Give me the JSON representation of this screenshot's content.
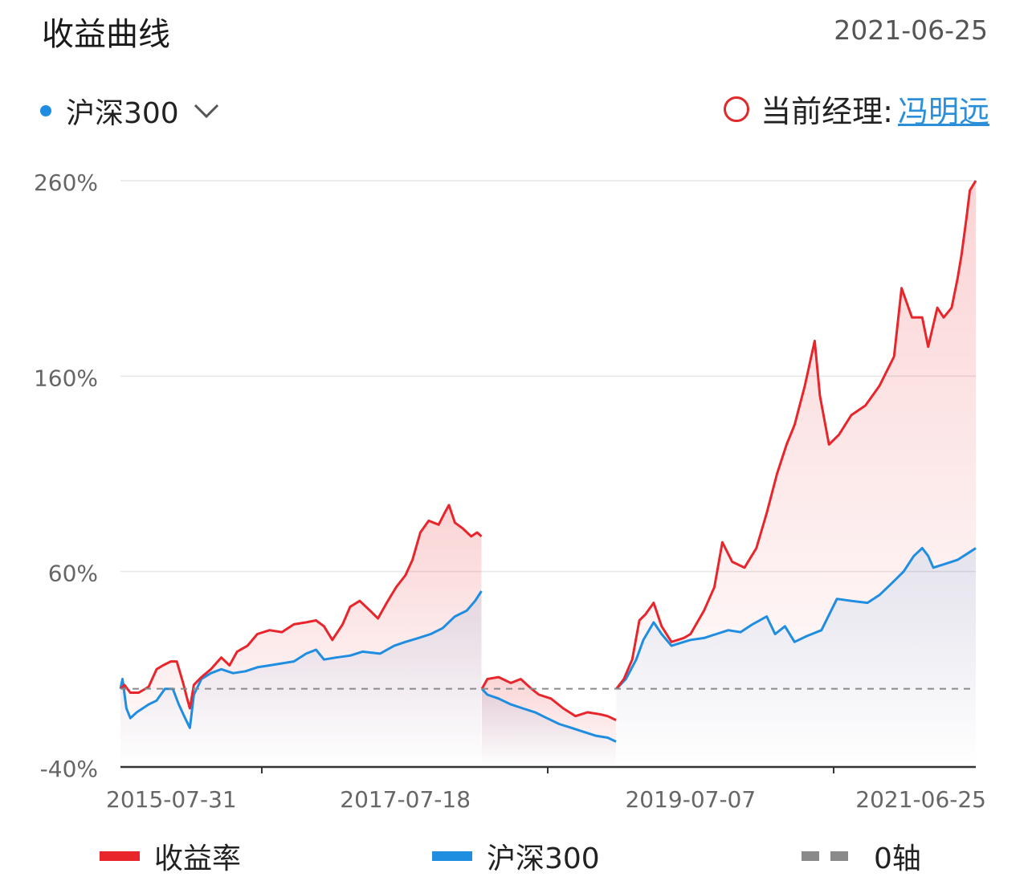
{
  "header": {
    "title": "收益曲线",
    "date": "2021-06-25"
  },
  "selector": {
    "label": "沪深300",
    "dot_color": "#1f8de0",
    "icon": "chevron-down-icon"
  },
  "manager": {
    "label": "当前经理:",
    "name": "冯明远",
    "marker_color": "#e0292b"
  },
  "chart_data": {
    "type": "line",
    "title": "",
    "xlabel": "",
    "ylabel": "",
    "ylim": [
      -40,
      260
    ],
    "y_ticks": [
      "260%",
      "160%",
      "60%",
      "-40%"
    ],
    "y_tick_values": [
      260,
      160,
      60,
      -40
    ],
    "x_ticks": [
      "2015-07-31",
      "2017-07-18",
      "2019-07-07",
      "2021-06-25"
    ],
    "x_range": [
      "2015-07-31",
      "2021-06-25"
    ],
    "zero_axis_value": 0,
    "grid": true,
    "legend_position": "bottom",
    "series": [
      {
        "name": "收益率",
        "color": "#e8252b",
        "segments": [
          [
            [
              "2015-07-31",
              0
            ],
            [
              "2015-08-10",
              2
            ],
            [
              "2015-08-25",
              -2
            ],
            [
              "2015-09-15",
              -2
            ],
            [
              "2015-10-10",
              1
            ],
            [
              "2015-10-30",
              10
            ],
            [
              "2015-11-15",
              12
            ],
            [
              "2015-12-05",
              14
            ],
            [
              "2015-12-20",
              14
            ],
            [
              "2016-01-05",
              3
            ],
            [
              "2016-01-15",
              -5
            ],
            [
              "2016-01-22",
              -10
            ],
            [
              "2016-02-01",
              2
            ],
            [
              "2016-02-20",
              6
            ],
            [
              "2016-03-15",
              10
            ],
            [
              "2016-04-10",
              16
            ],
            [
              "2016-05-01",
              12
            ],
            [
              "2016-05-20",
              19
            ],
            [
              "2016-06-15",
              22
            ],
            [
              "2016-07-10",
              28
            ],
            [
              "2016-08-10",
              30
            ],
            [
              "2016-09-10",
              29
            ],
            [
              "2016-10-10",
              33
            ],
            [
              "2016-11-10",
              34
            ],
            [
              "2016-12-05",
              35
            ],
            [
              "2016-12-25",
              32
            ],
            [
              "2017-01-15",
              25
            ],
            [
              "2017-02-10",
              33
            ],
            [
              "2017-03-01",
              42
            ],
            [
              "2017-03-25",
              45
            ],
            [
              "2017-04-20",
              40
            ],
            [
              "2017-05-10",
              36
            ],
            [
              "2017-06-01",
              44
            ],
            [
              "2017-06-25",
              52
            ],
            [
              "2017-07-18",
              58
            ],
            [
              "2017-08-05",
              66
            ],
            [
              "2017-08-25",
              80
            ],
            [
              "2017-09-15",
              86
            ],
            [
              "2017-10-10",
              84
            ],
            [
              "2017-10-25",
              90
            ],
            [
              "2017-11-05",
              94
            ],
            [
              "2017-11-20",
              85
            ],
            [
              "2017-12-10",
              82
            ],
            [
              "2017-12-31",
              78
            ],
            [
              "2018-01-15",
              80
            ],
            [
              "2018-01-26",
              78
            ]
          ],
          [
            [
              "2018-01-27",
              0
            ],
            [
              "2018-02-10",
              5
            ],
            [
              "2018-03-10",
              6
            ],
            [
              "2018-04-10",
              3
            ],
            [
              "2018-05-05",
              5
            ],
            [
              "2018-06-01",
              0
            ],
            [
              "2018-06-20",
              -3
            ],
            [
              "2018-07-20",
              -5
            ],
            [
              "2018-08-20",
              -10
            ],
            [
              "2018-09-20",
              -14
            ],
            [
              "2018-10-20",
              -12
            ],
            [
              "2018-11-20",
              -13
            ],
            [
              "2018-12-10",
              -14
            ],
            [
              "2018-12-31",
              -16
            ]
          ],
          [
            [
              "2019-01-01",
              0
            ],
            [
              "2019-01-20",
              5
            ],
            [
              "2019-02-10",
              15
            ],
            [
              "2019-02-28",
              35
            ],
            [
              "2019-03-15",
              38
            ],
            [
              "2019-04-05",
              44
            ],
            [
              "2019-04-25",
              32
            ],
            [
              "2019-05-20",
              24
            ],
            [
              "2019-06-20",
              26
            ],
            [
              "2019-07-07",
              28
            ],
            [
              "2019-08-10",
              40
            ],
            [
              "2019-09-05",
              52
            ],
            [
              "2019-09-25",
              75
            ],
            [
              "2019-10-20",
              65
            ],
            [
              "2019-11-20",
              62
            ],
            [
              "2019-12-20",
              72
            ],
            [
              "2020-01-15",
              90
            ],
            [
              "2020-02-10",
              110
            ],
            [
              "2020-03-05",
              125
            ],
            [
              "2020-03-25",
              135
            ],
            [
              "2020-04-20",
              155
            ],
            [
              "2020-05-15",
              178
            ],
            [
              "2020-05-28",
              150
            ],
            [
              "2020-06-20",
              125
            ],
            [
              "2020-07-15",
              130
            ],
            [
              "2020-08-15",
              140
            ],
            [
              "2020-09-20",
              145
            ],
            [
              "2020-10-25",
              155
            ],
            [
              "2020-12-01",
              170
            ],
            [
              "2020-12-20",
              205
            ],
            [
              "2021-01-15",
              190
            ],
            [
              "2021-02-10",
              190
            ],
            [
              "2021-02-25",
              175
            ],
            [
              "2021-03-20",
              195
            ],
            [
              "2021-04-05",
              190
            ],
            [
              "2021-04-25",
              195
            ],
            [
              "2021-05-10",
              210
            ],
            [
              "2021-05-20",
              222
            ],
            [
              "2021-06-01",
              240
            ],
            [
              "2021-06-10",
              255
            ],
            [
              "2021-06-25",
              260
            ]
          ]
        ]
      },
      {
        "name": "沪深300",
        "color": "#1f8de0",
        "segments": [
          [
            [
              "2015-07-31",
              0
            ],
            [
              "2015-08-05",
              5
            ],
            [
              "2015-08-15",
              -10
            ],
            [
              "2015-08-25",
              -15
            ],
            [
              "2015-09-10",
              -12
            ],
            [
              "2015-10-10",
              -8
            ],
            [
              "2015-10-30",
              -6
            ],
            [
              "2015-11-20",
              0
            ],
            [
              "2015-12-10",
              0
            ],
            [
              "2015-12-25",
              -8
            ],
            [
              "2016-01-10",
              -15
            ],
            [
              "2016-01-22",
              -20
            ],
            [
              "2016-02-01",
              -3
            ],
            [
              "2016-02-20",
              5
            ],
            [
              "2016-03-15",
              8
            ],
            [
              "2016-04-10",
              10
            ],
            [
              "2016-05-10",
              8
            ],
            [
              "2016-06-10",
              9
            ],
            [
              "2016-07-10",
              11
            ],
            [
              "2016-08-10",
              12
            ],
            [
              "2016-09-10",
              13
            ],
            [
              "2016-10-10",
              14
            ],
            [
              "2016-11-10",
              18
            ],
            [
              "2016-12-05",
              20
            ],
            [
              "2016-12-25",
              15
            ],
            [
              "2017-01-25",
              16
            ],
            [
              "2017-03-01",
              17
            ],
            [
              "2017-04-01",
              19
            ],
            [
              "2017-05-15",
              18
            ],
            [
              "2017-06-20",
              22
            ],
            [
              "2017-07-18",
              24
            ],
            [
              "2017-08-20",
              26
            ],
            [
              "2017-09-20",
              28
            ],
            [
              "2017-10-20",
              31
            ],
            [
              "2017-11-20",
              37
            ],
            [
              "2017-12-20",
              40
            ],
            [
              "2018-01-10",
              45
            ],
            [
              "2018-01-26",
              50
            ]
          ],
          [
            [
              "2018-01-27",
              0
            ],
            [
              "2018-02-10",
              -3
            ],
            [
              "2018-03-10",
              -5
            ],
            [
              "2018-04-10",
              -8
            ],
            [
              "2018-05-10",
              -10
            ],
            [
              "2018-06-10",
              -12
            ],
            [
              "2018-07-10",
              -15
            ],
            [
              "2018-08-10",
              -18
            ],
            [
              "2018-09-10",
              -20
            ],
            [
              "2018-10-10",
              -22
            ],
            [
              "2018-11-10",
              -24
            ],
            [
              "2018-12-10",
              -25
            ],
            [
              "2018-12-31",
              -27
            ]
          ],
          [
            [
              "2019-01-01",
              0
            ],
            [
              "2019-01-25",
              5
            ],
            [
              "2019-02-20",
              15
            ],
            [
              "2019-03-10",
              25
            ],
            [
              "2019-04-05",
              34
            ],
            [
              "2019-04-25",
              28
            ],
            [
              "2019-05-20",
              22
            ],
            [
              "2019-06-20",
              24
            ],
            [
              "2019-07-07",
              25
            ],
            [
              "2019-08-10",
              26
            ],
            [
              "2019-09-10",
              28
            ],
            [
              "2019-10-10",
              30
            ],
            [
              "2019-11-10",
              29
            ],
            [
              "2019-12-10",
              33
            ],
            [
              "2020-01-15",
              37
            ],
            [
              "2020-02-05",
              28
            ],
            [
              "2020-03-01",
              32
            ],
            [
              "2020-03-25",
              24
            ],
            [
              "2020-04-25",
              27
            ],
            [
              "2020-06-01",
              30
            ],
            [
              "2020-07-10",
              46
            ],
            [
              "2020-08-15",
              45
            ],
            [
              "2020-09-25",
              44
            ],
            [
              "2020-10-25",
              48
            ],
            [
              "2020-11-25",
              54
            ],
            [
              "2020-12-25",
              60
            ],
            [
              "2021-01-20",
              68
            ],
            [
              "2021-02-10",
              72
            ],
            [
              "2021-02-25",
              68
            ],
            [
              "2021-03-10",
              62
            ],
            [
              "2021-04-10",
              64
            ],
            [
              "2021-05-10",
              66
            ],
            [
              "2021-06-10",
              70
            ],
            [
              "2021-06-25",
              72
            ]
          ]
        ]
      }
    ]
  },
  "legend": {
    "items": [
      {
        "label": "收益率",
        "color": "#e8252b"
      },
      {
        "label": "沪深300",
        "color": "#1f8de0"
      },
      {
        "label": "0轴",
        "color": "#8a8a8a"
      }
    ]
  }
}
